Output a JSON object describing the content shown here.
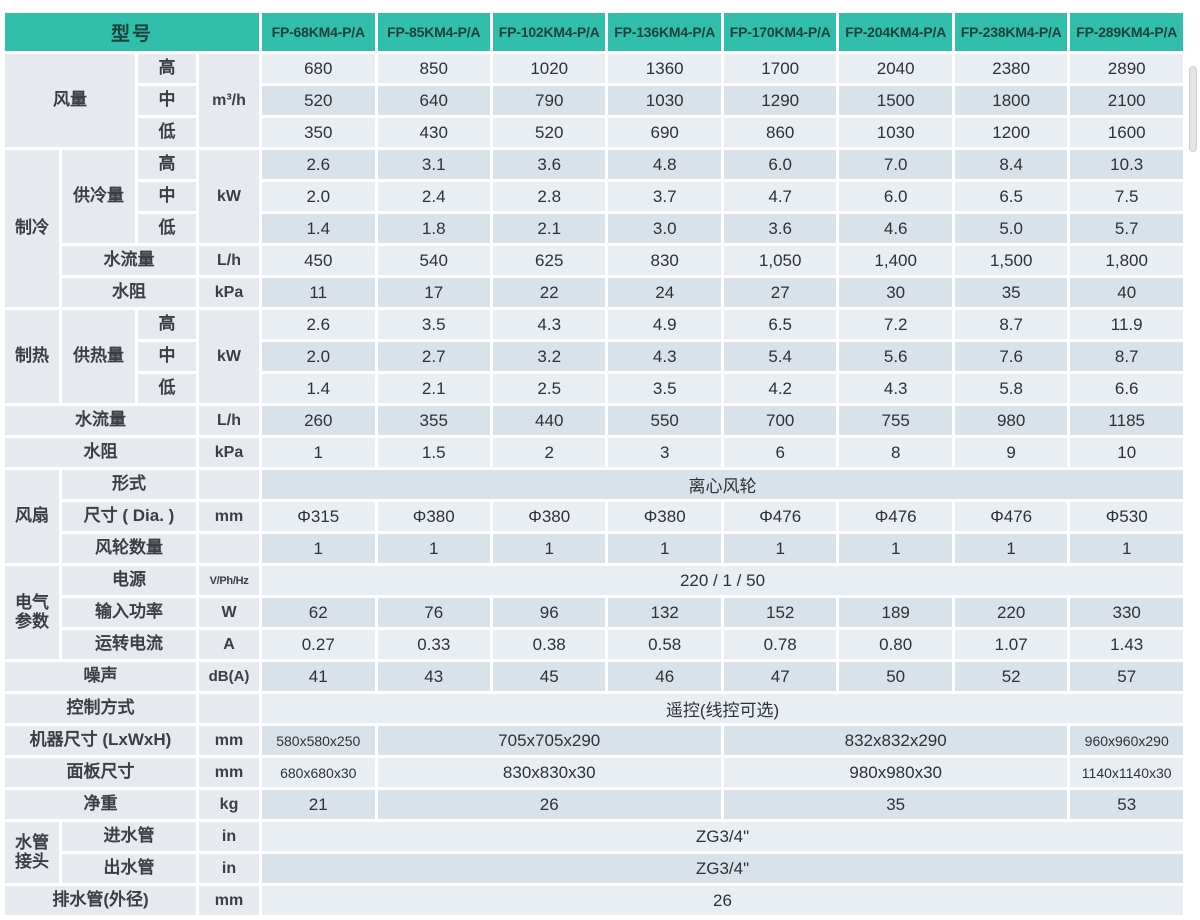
{
  "colors": {
    "header_bg": "#31bfab",
    "header_text": "#1e423c",
    "row_light": "#e9eef3",
    "row_dark": "#dae2e9",
    "label_bg": "#e6eaee"
  },
  "header": {
    "model_label": "型号",
    "models": [
      "FP-68KM4-P/A",
      "FP-85KM4-P/A",
      "FP-102KM4-P/A",
      "FP-136KM4-P/A",
      "FP-170KM4-P/A",
      "FP-204KM4-P/A",
      "FP-238KM4-P/A",
      "FP-289KM4-P/A"
    ]
  },
  "rows": [
    {
      "cells": [
        {
          "t": "风量",
          "k": "lab",
          "cs": 2,
          "rs": 3
        },
        {
          "t": "高",
          "k": "lab"
        },
        {
          "t": "m³/h",
          "k": "unit",
          "rs": 3
        },
        {
          "t": "680"
        },
        {
          "t": "850"
        },
        {
          "t": "1020"
        },
        {
          "t": "1360"
        },
        {
          "t": "1700"
        },
        {
          "t": "2040"
        },
        {
          "t": "2380"
        },
        {
          "t": "2890"
        }
      ]
    },
    {
      "cells": [
        {
          "t": "中",
          "k": "lab"
        },
        {
          "t": "520"
        },
        {
          "t": "640"
        },
        {
          "t": "790"
        },
        {
          "t": "1030"
        },
        {
          "t": "1290"
        },
        {
          "t": "1500"
        },
        {
          "t": "1800"
        },
        {
          "t": "2100"
        }
      ]
    },
    {
      "cells": [
        {
          "t": "低",
          "k": "lab"
        },
        {
          "t": "350"
        },
        {
          "t": "430"
        },
        {
          "t": "520"
        },
        {
          "t": "690"
        },
        {
          "t": "860"
        },
        {
          "t": "1030"
        },
        {
          "t": "1200"
        },
        {
          "t": "1600"
        }
      ]
    },
    {
      "cells": [
        {
          "t": "制冷",
          "k": "lab",
          "rs": 5
        },
        {
          "t": "供冷量",
          "k": "lab",
          "rs": 3
        },
        {
          "t": "高",
          "k": "lab"
        },
        {
          "t": "kW",
          "k": "unit",
          "rs": 3
        },
        {
          "t": "2.6"
        },
        {
          "t": "3.1"
        },
        {
          "t": "3.6"
        },
        {
          "t": "4.8"
        },
        {
          "t": "6.0"
        },
        {
          "t": "7.0"
        },
        {
          "t": "8.4"
        },
        {
          "t": "10.3"
        }
      ]
    },
    {
      "cells": [
        {
          "t": "中",
          "k": "lab"
        },
        {
          "t": "2.0"
        },
        {
          "t": "2.4"
        },
        {
          "t": "2.8"
        },
        {
          "t": "3.7"
        },
        {
          "t": "4.7"
        },
        {
          "t": "6.0"
        },
        {
          "t": "6.5"
        },
        {
          "t": "7.5"
        }
      ]
    },
    {
      "cells": [
        {
          "t": "低",
          "k": "lab"
        },
        {
          "t": "1.4"
        },
        {
          "t": "1.8"
        },
        {
          "t": "2.1"
        },
        {
          "t": "3.0"
        },
        {
          "t": "3.6"
        },
        {
          "t": "4.6"
        },
        {
          "t": "5.0"
        },
        {
          "t": "5.7"
        }
      ]
    },
    {
      "cells": [
        {
          "t": "水流量",
          "k": "lab",
          "cs": 2
        },
        {
          "t": "L/h",
          "k": "unit"
        },
        {
          "t": "450"
        },
        {
          "t": "540"
        },
        {
          "t": "625"
        },
        {
          "t": "830"
        },
        {
          "t": "1,050"
        },
        {
          "t": "1,400"
        },
        {
          "t": "1,500"
        },
        {
          "t": "1,800"
        }
      ]
    },
    {
      "cells": [
        {
          "t": "水阻",
          "k": "lab",
          "cs": 2
        },
        {
          "t": "kPa",
          "k": "unit"
        },
        {
          "t": "11"
        },
        {
          "t": "17"
        },
        {
          "t": "22"
        },
        {
          "t": "24"
        },
        {
          "t": "27"
        },
        {
          "t": "30"
        },
        {
          "t": "35"
        },
        {
          "t": "40"
        }
      ]
    },
    {
      "cells": [
        {
          "t": "制热",
          "k": "lab",
          "rs": 3
        },
        {
          "t": "供热量",
          "k": "lab",
          "rs": 3
        },
        {
          "t": "高",
          "k": "lab"
        },
        {
          "t": "kW",
          "k": "unit",
          "rs": 3
        },
        {
          "t": "2.6"
        },
        {
          "t": "3.5"
        },
        {
          "t": "4.3"
        },
        {
          "t": "4.9"
        },
        {
          "t": "6.5"
        },
        {
          "t": "7.2"
        },
        {
          "t": "8.7"
        },
        {
          "t": "11.9"
        }
      ]
    },
    {
      "cells": [
        {
          "t": "中",
          "k": "lab"
        },
        {
          "t": "2.0"
        },
        {
          "t": "2.7"
        },
        {
          "t": "3.2"
        },
        {
          "t": "4.3"
        },
        {
          "t": "5.4"
        },
        {
          "t": "5.6"
        },
        {
          "t": "7.6"
        },
        {
          "t": "8.7"
        }
      ]
    },
    {
      "cells": [
        {
          "t": "低",
          "k": "lab"
        },
        {
          "t": "1.4"
        },
        {
          "t": "2.1"
        },
        {
          "t": "2.5"
        },
        {
          "t": "3.5"
        },
        {
          "t": "4.2"
        },
        {
          "t": "4.3"
        },
        {
          "t": "5.8"
        },
        {
          "t": "6.6"
        }
      ]
    },
    {
      "cells": [
        {
          "t": "水流量",
          "k": "lab",
          "cs": 3
        },
        {
          "t": "L/h",
          "k": "unit"
        },
        {
          "t": "260"
        },
        {
          "t": "355"
        },
        {
          "t": "440"
        },
        {
          "t": "550"
        },
        {
          "t": "700"
        },
        {
          "t": "755"
        },
        {
          "t": "980"
        },
        {
          "t": "1185"
        }
      ]
    },
    {
      "cells": [
        {
          "t": "水阻",
          "k": "lab",
          "cs": 3
        },
        {
          "t": "kPa",
          "k": "unit"
        },
        {
          "t": "1"
        },
        {
          "t": "1.5"
        },
        {
          "t": "2"
        },
        {
          "t": "3"
        },
        {
          "t": "6"
        },
        {
          "t": "8"
        },
        {
          "t": "9"
        },
        {
          "t": "10"
        }
      ]
    },
    {
      "cells": [
        {
          "t": "风扇",
          "k": "lab",
          "rs": 3
        },
        {
          "t": "形式",
          "k": "lab",
          "cs": 2
        },
        {
          "t": "",
          "k": "unit"
        },
        {
          "t": "离心风轮",
          "cs": 8
        }
      ]
    },
    {
      "cells": [
        {
          "t": "尺寸 ( Dia. )",
          "k": "lab",
          "cs": 2
        },
        {
          "t": "mm",
          "k": "unit"
        },
        {
          "t": "Φ315"
        },
        {
          "t": "Φ380"
        },
        {
          "t": "Φ380"
        },
        {
          "t": "Φ380"
        },
        {
          "t": "Φ476"
        },
        {
          "t": "Φ476"
        },
        {
          "t": "Φ476"
        },
        {
          "t": "Φ530"
        }
      ]
    },
    {
      "cells": [
        {
          "t": "风轮数量",
          "k": "lab",
          "cs": 2
        },
        {
          "t": "",
          "k": "unit"
        },
        {
          "t": "1"
        },
        {
          "t": "1"
        },
        {
          "t": "1"
        },
        {
          "t": "1"
        },
        {
          "t": "1"
        },
        {
          "t": "1"
        },
        {
          "t": "1"
        },
        {
          "t": "1"
        }
      ]
    },
    {
      "cells": [
        {
          "t": "电气\n参数",
          "k": "lab",
          "rs": 3
        },
        {
          "t": "电源",
          "k": "lab",
          "cs": 2
        },
        {
          "t": "V/Ph/Hz",
          "k": "unit",
          "xs": true
        },
        {
          "t": "220 / 1 / 50",
          "cs": 8
        }
      ]
    },
    {
      "cells": [
        {
          "t": "输入功率",
          "k": "lab",
          "cs": 2
        },
        {
          "t": "W",
          "k": "unit"
        },
        {
          "t": "62"
        },
        {
          "t": "76"
        },
        {
          "t": "96"
        },
        {
          "t": "132"
        },
        {
          "t": "152"
        },
        {
          "t": "189"
        },
        {
          "t": "220"
        },
        {
          "t": "330"
        }
      ]
    },
    {
      "cells": [
        {
          "t": "运转电流",
          "k": "lab",
          "cs": 2
        },
        {
          "t": "A",
          "k": "unit"
        },
        {
          "t": "0.27"
        },
        {
          "t": "0.33"
        },
        {
          "t": "0.38"
        },
        {
          "t": "0.58"
        },
        {
          "t": "0.78"
        },
        {
          "t": "0.80"
        },
        {
          "t": "1.07"
        },
        {
          "t": "1.43"
        }
      ]
    },
    {
      "cells": [
        {
          "t": "噪声",
          "k": "lab",
          "cs": 3
        },
        {
          "t": "dB(A)",
          "k": "unit",
          "s2": true
        },
        {
          "t": "41"
        },
        {
          "t": "43"
        },
        {
          "t": "45"
        },
        {
          "t": "46"
        },
        {
          "t": "47"
        },
        {
          "t": "50"
        },
        {
          "t": "52"
        },
        {
          "t": "57"
        }
      ]
    },
    {
      "cells": [
        {
          "t": "控制方式",
          "k": "lab",
          "cs": 3
        },
        {
          "t": "",
          "k": "unit"
        },
        {
          "t": "遥控(线控可选)",
          "cs": 8
        }
      ]
    },
    {
      "cells": [
        {
          "t": "机器尺寸 (LxWxH)",
          "k": "lab",
          "cs": 3
        },
        {
          "t": "mm",
          "k": "unit"
        },
        {
          "t": "580x580x250",
          "sm": true
        },
        {
          "t": "705x705x290",
          "cs": 3
        },
        {
          "t": "832x832x290",
          "cs": 3
        },
        {
          "t": "960x960x290",
          "sm": true
        }
      ]
    },
    {
      "cells": [
        {
          "t": "面板尺寸",
          "k": "lab",
          "cs": 3
        },
        {
          "t": "mm",
          "k": "unit"
        },
        {
          "t": "680x680x30",
          "sm": true
        },
        {
          "t": "830x830x30",
          "cs": 3
        },
        {
          "t": "980x980x30",
          "cs": 3
        },
        {
          "t": "1140x1140x30",
          "sm": true
        }
      ]
    },
    {
      "cells": [
        {
          "t": "净重",
          "k": "lab",
          "cs": 3
        },
        {
          "t": "kg",
          "k": "unit"
        },
        {
          "t": "21"
        },
        {
          "t": "26",
          "cs": 3
        },
        {
          "t": "35",
          "cs": 3
        },
        {
          "t": "53"
        }
      ]
    },
    {
      "cells": [
        {
          "t": "水管\n接头",
          "k": "lab",
          "rs": 2
        },
        {
          "t": "进水管",
          "k": "lab",
          "cs": 2
        },
        {
          "t": "in",
          "k": "unit"
        },
        {
          "t": "ZG3/4\"",
          "cs": 8
        }
      ]
    },
    {
      "cells": [
        {
          "t": "出水管",
          "k": "lab",
          "cs": 2
        },
        {
          "t": "in",
          "k": "unit"
        },
        {
          "t": "ZG3/4\"",
          "cs": 8
        }
      ]
    },
    {
      "cells": [
        {
          "t": "排水管(外径)",
          "k": "lab",
          "cs": 3
        },
        {
          "t": "mm",
          "k": "unit"
        },
        {
          "t": "26",
          "cs": 8
        }
      ]
    }
  ]
}
